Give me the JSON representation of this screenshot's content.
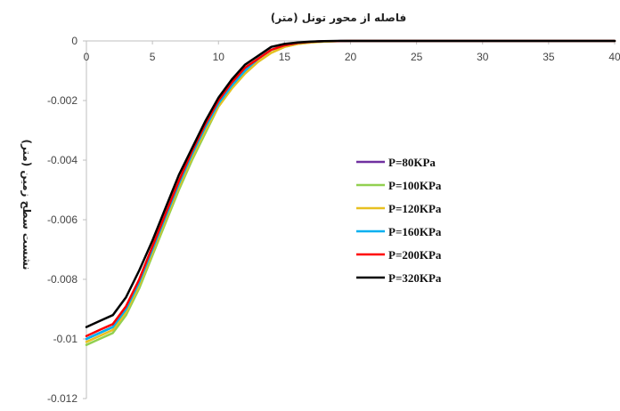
{
  "chart_data": {
    "type": "line",
    "title": "",
    "xlabel": "فاصله از محور تونل (متر)",
    "ylabel": "نشست سطح زمین (متر)",
    "xlim": [
      0,
      40
    ],
    "ylim": [
      -0.012,
      0
    ],
    "x_ticks": [
      0,
      5,
      10,
      15,
      20,
      25,
      30,
      35,
      40
    ],
    "y_ticks": [
      0,
      -0.002,
      -0.004,
      -0.006,
      -0.008,
      -0.01,
      -0.012
    ],
    "x_tick_labels": [
      "0",
      "5",
      "10",
      "15",
      "20",
      "25",
      "30",
      "35",
      "40"
    ],
    "y_tick_labels": [
      "0",
      "-0.002",
      "-0.004",
      "-0.006",
      "-0.008",
      "-0.01",
      "-0.012"
    ],
    "grid": false,
    "legend_position": "right-center",
    "x": [
      0,
      1,
      2,
      3,
      4,
      5,
      6,
      7,
      8,
      9,
      10,
      11,
      12,
      13,
      14,
      15,
      16,
      17,
      18,
      19,
      20,
      22,
      24,
      26,
      28,
      30,
      32,
      34,
      36,
      38,
      40
    ],
    "series": [
      {
        "name": "P=80KPa",
        "color": "#7030a0",
        "values": [
          -0.01,
          -0.0098,
          -0.0096,
          -0.009,
          -0.0081,
          -0.007,
          -0.0059,
          -0.0048,
          -0.0038,
          -0.0029,
          -0.0021,
          -0.0015,
          -0.001,
          -0.0006,
          -0.0003,
          -0.00015,
          -7e-05,
          -3e-05,
          -1e-05,
          -5e-06,
          0,
          0,
          0,
          0,
          0,
          0,
          0,
          0,
          0,
          0,
          0
        ]
      },
      {
        "name": "P=100KPa",
        "color": "#92d050",
        "values": [
          -0.0102,
          -0.01,
          -0.0098,
          -0.0092,
          -0.0083,
          -0.0072,
          -0.0061,
          -0.005,
          -0.004,
          -0.0031,
          -0.0022,
          -0.0016,
          -0.0011,
          -0.0007,
          -0.0004,
          -0.0002,
          -0.0001,
          -5e-05,
          -2e-05,
          -1e-05,
          0,
          0,
          0,
          0,
          0,
          0,
          0,
          0,
          0,
          0,
          0
        ]
      },
      {
        "name": "P=120KPa",
        "color": "#e8c020",
        "values": [
          -0.0101,
          -0.0099,
          -0.0097,
          -0.0091,
          -0.0082,
          -0.0071,
          -0.006,
          -0.0049,
          -0.0039,
          -0.003,
          -0.0022,
          -0.0016,
          -0.0011,
          -0.0007,
          -0.0004,
          -0.0002,
          -0.0001,
          -5e-05,
          -2e-05,
          -1e-05,
          0,
          0,
          0,
          0,
          0,
          0,
          0,
          0,
          0,
          0,
          0
        ]
      },
      {
        "name": "P=160KPa",
        "color": "#00b0f0",
        "values": [
          -0.01,
          -0.0098,
          -0.0096,
          -0.009,
          -0.0081,
          -0.007,
          -0.0059,
          -0.0048,
          -0.0038,
          -0.0029,
          -0.0021,
          -0.0015,
          -0.001,
          -0.0006,
          -0.0003,
          -0.00015,
          -7e-05,
          -3e-05,
          -1e-05,
          -5e-06,
          0,
          0,
          0,
          0,
          0,
          0,
          0,
          0,
          0,
          0,
          0
        ]
      },
      {
        "name": "P=200KPa",
        "color": "#ff0000",
        "values": [
          -0.0099,
          -0.0097,
          -0.0095,
          -0.0089,
          -0.008,
          -0.0069,
          -0.0058,
          -0.0047,
          -0.0037,
          -0.0028,
          -0.002,
          -0.0014,
          -0.0009,
          -0.0006,
          -0.0003,
          -0.00015,
          -7e-05,
          -3e-05,
          -1e-05,
          -5e-06,
          0,
          0,
          0,
          0,
          0,
          0,
          0,
          0,
          0,
          0,
          0
        ]
      },
      {
        "name": "P=320KPa",
        "color": "#000000",
        "values": [
          -0.0096,
          -0.0094,
          -0.0092,
          -0.0086,
          -0.0077,
          -0.0067,
          -0.0056,
          -0.0045,
          -0.0036,
          -0.0027,
          -0.0019,
          -0.0013,
          -0.0008,
          -0.0005,
          -0.0002,
          -0.0001,
          -5e-05,
          -2e-05,
          -1e-05,
          0,
          0,
          0,
          0,
          0,
          0,
          0,
          0,
          0,
          0,
          0,
          0
        ]
      }
    ]
  }
}
